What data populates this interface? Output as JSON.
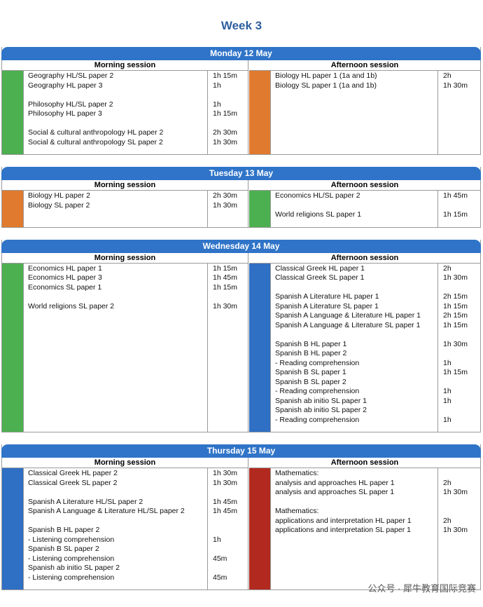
{
  "title": "Week 3",
  "days": [
    {
      "heading": "Monday 12 May",
      "morning": {
        "label": "Morning session",
        "color": "#4caf50",
        "groups": [
          [
            {
              "text": "Geography HL/SL paper 2",
              "time": "1h 15m"
            },
            {
              "text": "Geography HL paper 3",
              "time": "1h"
            }
          ],
          [
            {
              "text": "Philosophy HL/SL paper 2",
              "time": "1h"
            },
            {
              "text": "Philosophy HL paper 3",
              "time": "1h 15m"
            }
          ],
          [
            {
              "text": "Social & cultural anthropology HL paper 2",
              "time": "2h 30m"
            },
            {
              "text": "Social & cultural anthropology SL paper 2",
              "time": "1h 30m"
            }
          ]
        ]
      },
      "afternoon": {
        "label": "Afternoon session",
        "color": "#e07a2e",
        "groups": [
          [
            {
              "text": "Biology HL paper 1 (1a and 1b)",
              "time": "2h"
            },
            {
              "text": "Biology SL paper 1 (1a and 1b)",
              "time": "1h 30m"
            }
          ]
        ]
      }
    },
    {
      "heading": "Tuesday 13 May",
      "morning": {
        "label": "Morning session",
        "color": "#e07a2e",
        "groups": [
          [
            {
              "text": "Biology HL paper 2",
              "time": "2h 30m"
            },
            {
              "text": "Biology SL paper 2",
              "time": "1h 30m"
            }
          ]
        ]
      },
      "afternoon": {
        "label": "Afternoon session",
        "color": "#4caf50",
        "groups": [
          [
            {
              "text": "Economics HL/SL paper 2",
              "time": "1h 45m"
            }
          ],
          [
            {
              "text": "World religions SL paper 1",
              "time": "1h 15m"
            }
          ]
        ]
      }
    },
    {
      "heading": "Wednesday 14 May",
      "morning": {
        "label": "Morning session",
        "color": "#4caf50",
        "groups": [
          [
            {
              "text": "Economics HL paper 1",
              "time": "1h 15m"
            },
            {
              "text": "Economics HL paper 3",
              "time": "1h 45m"
            },
            {
              "text": "Economics SL paper 1",
              "time": "1h 15m"
            }
          ],
          [
            {
              "text": "World religions SL paper 2",
              "time": "1h 30m"
            }
          ]
        ]
      },
      "afternoon": {
        "label": "Afternoon session",
        "color": "#2f6fc4",
        "groups": [
          [
            {
              "text": "Classical Greek HL paper 1",
              "time": "2h"
            },
            {
              "text": "Classical Greek SL paper 1",
              "time": "1h 30m"
            }
          ],
          [
            {
              "text": "Spanish A Literature HL paper 1",
              "time": "2h 15m"
            },
            {
              "text": "Spanish A Literature SL paper 1",
              "time": "1h 15m"
            },
            {
              "text": "Spanish A Language & Literature HL paper 1",
              "time": "2h 15m"
            },
            {
              "text": "Spanish A Language & Literature SL paper 1",
              "time": "1h 15m"
            }
          ],
          [
            {
              "text": "Spanish B HL paper 1",
              "time": "1h 30m"
            },
            {
              "text": "Spanish B HL paper 2"
            },
            {
              "text": "- Reading comprehension",
              "time": "1h"
            },
            {
              "text": "Spanish B SL paper 1",
              "time": "1h 15m"
            },
            {
              "text": "Spanish B SL paper 2"
            },
            {
              "text": "- Reading comprehension",
              "time": "1h"
            },
            {
              "text": "Spanish ab initio SL paper 1",
              "time": "1h"
            },
            {
              "text": "Spanish ab initio SL paper 2"
            },
            {
              "text": "- Reading comprehension",
              "time": "1h"
            }
          ]
        ]
      }
    },
    {
      "heading": "Thursday 15 May",
      "morning": {
        "label": "Morning session",
        "color": "#2f6fc4",
        "groups": [
          [
            {
              "text": "Classical Greek HL paper 2",
              "time": "1h 30m"
            },
            {
              "text": "Classical Greek SL paper 2",
              "time": "1h 30m"
            }
          ],
          [
            {
              "text": "Spanish A Literature HL/SL paper 2",
              "time": "1h 45m"
            },
            {
              "text": "Spanish A Language & Literature HL/SL paper 2",
              "time": "1h 45m"
            }
          ],
          [
            {
              "text": "Spanish B HL paper 2"
            },
            {
              "text": "- Listening comprehension",
              "time": "1h"
            },
            {
              "text": "Spanish B SL paper 2"
            },
            {
              "text": "- Listening comprehension",
              "time": "45m"
            },
            {
              "text": "Spanish ab initio SL paper 2"
            },
            {
              "text": "- Listening comprehension",
              "time": "45m"
            }
          ]
        ]
      },
      "afternoon": {
        "label": "Afternoon session",
        "color": "#b22a1f",
        "groups": [
          [
            {
              "text": "Mathematics:"
            },
            {
              "text": "analysis and approaches HL paper 1",
              "time": "2h"
            },
            {
              "text": "analysis and approaches SL paper 1",
              "time": "1h 30m"
            }
          ],
          [
            {
              "text": "Mathematics:"
            },
            {
              "text": "applications and interpretation HL paper 1",
              "time": "2h"
            },
            {
              "text": "applications and interpretation SL paper 1",
              "time": "1h 30m"
            }
          ]
        ]
      }
    }
  ],
  "watermark": "公众号 · 犀牛教育国际竞赛"
}
